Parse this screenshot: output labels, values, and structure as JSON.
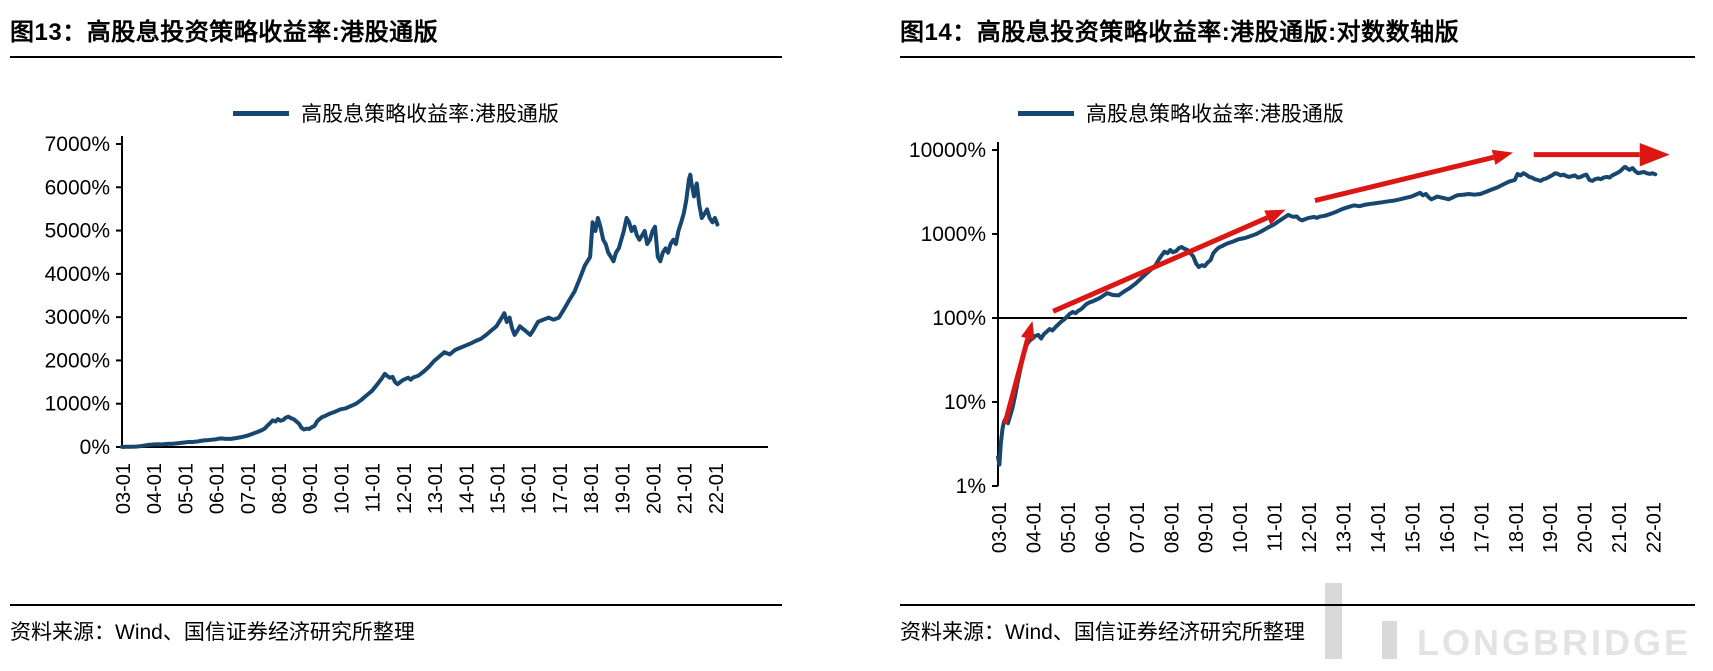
{
  "watermark": {
    "text": "LONGBRIDGE"
  },
  "series_points": [
    [
      2003.0,
      2.2
    ],
    [
      2003.04,
      1.8
    ],
    [
      2003.08,
      3.2
    ],
    [
      2003.13,
      4.8
    ],
    [
      2003.17,
      5.8
    ],
    [
      2003.21,
      6.2
    ],
    [
      2003.25,
      6.0
    ],
    [
      2003.29,
      5.6
    ],
    [
      2003.33,
      6.4
    ],
    [
      2003.42,
      8.5
    ],
    [
      2003.5,
      12
    ],
    [
      2003.58,
      18
    ],
    [
      2003.67,
      27
    ],
    [
      2003.75,
      38
    ],
    [
      2003.83,
      48
    ],
    [
      2003.92,
      54
    ],
    [
      2004.0,
      57
    ],
    [
      2004.08,
      61
    ],
    [
      2004.17,
      63
    ],
    [
      2004.25,
      57
    ],
    [
      2004.33,
      64
    ],
    [
      2004.42,
      69
    ],
    [
      2004.5,
      74
    ],
    [
      2004.58,
      71
    ],
    [
      2004.67,
      78
    ],
    [
      2004.75,
      84
    ],
    [
      2004.83,
      90
    ],
    [
      2004.92,
      96
    ],
    [
      2005.0,
      103
    ],
    [
      2005.08,
      112
    ],
    [
      2005.17,
      118
    ],
    [
      2005.25,
      114
    ],
    [
      2005.33,
      122
    ],
    [
      2005.42,
      128
    ],
    [
      2005.5,
      138
    ],
    [
      2005.58,
      148
    ],
    [
      2005.67,
      154
    ],
    [
      2005.75,
      158
    ],
    [
      2005.83,
      164
    ],
    [
      2005.92,
      170
    ],
    [
      2006.0,
      178
    ],
    [
      2006.17,
      198
    ],
    [
      2006.33,
      188
    ],
    [
      2006.5,
      186
    ],
    [
      2006.67,
      208
    ],
    [
      2006.83,
      228
    ],
    [
      2007.0,
      258
    ],
    [
      2007.17,
      300
    ],
    [
      2007.33,
      345
    ],
    [
      2007.5,
      395
    ],
    [
      2007.58,
      430
    ],
    [
      2007.67,
      500
    ],
    [
      2007.75,
      555
    ],
    [
      2007.83,
      615
    ],
    [
      2007.92,
      590
    ],
    [
      2008.0,
      645
    ],
    [
      2008.08,
      605
    ],
    [
      2008.17,
      625
    ],
    [
      2008.25,
      680
    ],
    [
      2008.33,
      700
    ],
    [
      2008.42,
      665
    ],
    [
      2008.5,
      645
    ],
    [
      2008.58,
      595
    ],
    [
      2008.67,
      540
    ],
    [
      2008.75,
      445
    ],
    [
      2008.83,
      405
    ],
    [
      2008.92,
      425
    ],
    [
      2009.0,
      415
    ],
    [
      2009.08,
      455
    ],
    [
      2009.17,
      490
    ],
    [
      2009.25,
      590
    ],
    [
      2009.33,
      645
    ],
    [
      2009.42,
      695
    ],
    [
      2009.5,
      715
    ],
    [
      2009.58,
      745
    ],
    [
      2009.67,
      775
    ],
    [
      2009.75,
      795
    ],
    [
      2009.83,
      815
    ],
    [
      2009.92,
      845
    ],
    [
      2010.0,
      870
    ],
    [
      2010.17,
      895
    ],
    [
      2010.33,
      945
    ],
    [
      2010.5,
      1000
    ],
    [
      2010.67,
      1090
    ],
    [
      2010.83,
      1190
    ],
    [
      2011.0,
      1290
    ],
    [
      2011.17,
      1440
    ],
    [
      2011.33,
      1590
    ],
    [
      2011.42,
      1690
    ],
    [
      2011.5,
      1640
    ],
    [
      2011.58,
      1600
    ],
    [
      2011.67,
      1620
    ],
    [
      2011.75,
      1500
    ],
    [
      2011.83,
      1450
    ],
    [
      2011.92,
      1505
    ],
    [
      2012.0,
      1545
    ],
    [
      2012.17,
      1600
    ],
    [
      2012.25,
      1555
    ],
    [
      2012.33,
      1605
    ],
    [
      2012.5,
      1650
    ],
    [
      2012.67,
      1745
    ],
    [
      2012.83,
      1850
    ],
    [
      2013.0,
      1990
    ],
    [
      2013.17,
      2090
    ],
    [
      2013.33,
      2190
    ],
    [
      2013.5,
      2140
    ],
    [
      2013.67,
      2240
    ],
    [
      2013.83,
      2290
    ],
    [
      2014.0,
      2340
    ],
    [
      2014.17,
      2390
    ],
    [
      2014.33,
      2450
    ],
    [
      2014.5,
      2500
    ],
    [
      2014.67,
      2590
    ],
    [
      2014.83,
      2690
    ],
    [
      2015.0,
      2790
    ],
    [
      2015.17,
      2990
    ],
    [
      2015.25,
      3090
    ],
    [
      2015.33,
      2890
    ],
    [
      2015.42,
      2990
    ],
    [
      2015.5,
      2740
    ],
    [
      2015.58,
      2590
    ],
    [
      2015.67,
      2690
    ],
    [
      2015.75,
      2790
    ],
    [
      2015.83,
      2740
    ],
    [
      2015.92,
      2690
    ],
    [
      2016.0,
      2640
    ],
    [
      2016.08,
      2590
    ],
    [
      2016.17,
      2690
    ],
    [
      2016.25,
      2790
    ],
    [
      2016.33,
      2890
    ],
    [
      2016.5,
      2940
    ],
    [
      2016.67,
      2990
    ],
    [
      2016.83,
      2940
    ],
    [
      2017.0,
      2990
    ],
    [
      2017.17,
      3190
    ],
    [
      2017.33,
      3390
    ],
    [
      2017.5,
      3590
    ],
    [
      2017.67,
      3890
    ],
    [
      2017.83,
      4190
    ],
    [
      2018.0,
      4390
    ],
    [
      2018.08,
      5190
    ],
    [
      2018.17,
      4990
    ],
    [
      2018.25,
      5290
    ],
    [
      2018.33,
      5090
    ],
    [
      2018.42,
      4790
    ],
    [
      2018.5,
      4690
    ],
    [
      2018.58,
      4490
    ],
    [
      2018.67,
      4390
    ],
    [
      2018.75,
      4290
    ],
    [
      2018.83,
      4490
    ],
    [
      2018.92,
      4590
    ],
    [
      2019.0,
      4790
    ],
    [
      2019.08,
      4990
    ],
    [
      2019.17,
      5290
    ],
    [
      2019.25,
      5190
    ],
    [
      2019.33,
      4990
    ],
    [
      2019.42,
      5090
    ],
    [
      2019.5,
      4890
    ],
    [
      2019.58,
      4790
    ],
    [
      2019.67,
      4890
    ],
    [
      2019.75,
      4990
    ],
    [
      2019.83,
      4690
    ],
    [
      2019.92,
      4790
    ],
    [
      2020.0,
      4990
    ],
    [
      2020.08,
      5090
    ],
    [
      2020.17,
      4390
    ],
    [
      2020.25,
      4290
    ],
    [
      2020.33,
      4490
    ],
    [
      2020.42,
      4590
    ],
    [
      2020.5,
      4490
    ],
    [
      2020.58,
      4690
    ],
    [
      2020.67,
      4790
    ],
    [
      2020.75,
      4690
    ],
    [
      2020.83,
      4990
    ],
    [
      2020.92,
      5190
    ],
    [
      2021.0,
      5390
    ],
    [
      2021.08,
      5690
    ],
    [
      2021.17,
      6190
    ],
    [
      2021.21,
      6290
    ],
    [
      2021.25,
      6090
    ],
    [
      2021.33,
      5790
    ],
    [
      2021.38,
      5990
    ],
    [
      2021.42,
      6090
    ],
    [
      2021.5,
      5590
    ],
    [
      2021.58,
      5290
    ],
    [
      2021.67,
      5390
    ],
    [
      2021.75,
      5490
    ],
    [
      2021.83,
      5290
    ],
    [
      2021.92,
      5190
    ],
    [
      2022.0,
      5290
    ],
    [
      2022.08,
      5140
    ]
  ],
  "chart_data": [
    {
      "type": "line",
      "scale": "linear",
      "title": "图13：高股息投资策略收益率:港股通版",
      "legend": "高股息策略收益率:港股通版",
      "source": "资料来源：Wind、国信证券经济研究所整理",
      "series": [
        {
          "name": "高股息策略收益率:港股通版",
          "color": "#17476F",
          "points_ref": "series_points"
        }
      ],
      "xlim": [
        2003,
        2023.7
      ],
      "ylim": [
        0,
        7000
      ],
      "yticks": [
        {
          "v": 7000,
          "label": "7000%"
        },
        {
          "v": 6000,
          "label": "6000%"
        },
        {
          "v": 5000,
          "label": "5000%"
        },
        {
          "v": 4000,
          "label": "4000%"
        },
        {
          "v": 3000,
          "label": "3000%"
        },
        {
          "v": 2000,
          "label": "2000%"
        },
        {
          "v": 1000,
          "label": "1000%"
        },
        {
          "v": 0,
          "label": "0%"
        }
      ],
      "xticks": [
        "03-01",
        "04-01",
        "05-01",
        "06-01",
        "07-01",
        "08-01",
        "09-01",
        "10-01",
        "11-01",
        "12-01",
        "13-01",
        "14-01",
        "15-01",
        "16-01",
        "17-01",
        "18-01",
        "19-01",
        "20-01",
        "21-01",
        "22-01"
      ],
      "grid": false,
      "legend_position": "top-center"
    },
    {
      "type": "line",
      "scale": "log",
      "title": "图14：高股息投资策略收益率:港股通版:对数数轴版",
      "legend": "高股息策略收益率:港股通版",
      "source": "资料来源：Wind、国信证券经济研究所整理",
      "series": [
        {
          "name": "高股息策略收益率:港股通版",
          "color": "#17476F",
          "points_ref": "series_points"
        }
      ],
      "xlim": [
        2003,
        2023.0
      ],
      "ylim": [
        1,
        10000
      ],
      "yticks": [
        {
          "v": 10000,
          "label": "10000%"
        },
        {
          "v": 1000,
          "label": "1000%"
        },
        {
          "v": 100,
          "label": "100%"
        },
        {
          "v": 10,
          "label": "10%"
        },
        {
          "v": 1,
          "label": "1%"
        }
      ],
      "xticks": [
        "03-01",
        "04-01",
        "05-01",
        "06-01",
        "07-01",
        "08-01",
        "09-01",
        "10-01",
        "11-01",
        "12-01",
        "13-01",
        "14-01",
        "15-01",
        "16-01",
        "17-01",
        "18-01",
        "19-01",
        "20-01",
        "21-01",
        "22-01"
      ],
      "hline": 100,
      "grid": false,
      "legend_position": "top-center",
      "annotations": {
        "arrow_color": "#DC1713",
        "arrows": [
          {
            "from": [
              2003.2,
              5.5
            ],
            "to": [
              2004.0,
              92
            ],
            "headlen": 18
          },
          {
            "from": [
              2004.6,
              120
            ],
            "to": [
              2011.35,
              1950
            ],
            "headlen": 20
          },
          {
            "from": [
              2012.2,
              2500
            ],
            "to": [
              2017.95,
              9300
            ],
            "headlen": 20
          },
          {
            "from": [
              2018.55,
              8800
            ],
            "to": [
              2022.5,
              8800
            ],
            "headlen": 30
          }
        ]
      }
    }
  ]
}
